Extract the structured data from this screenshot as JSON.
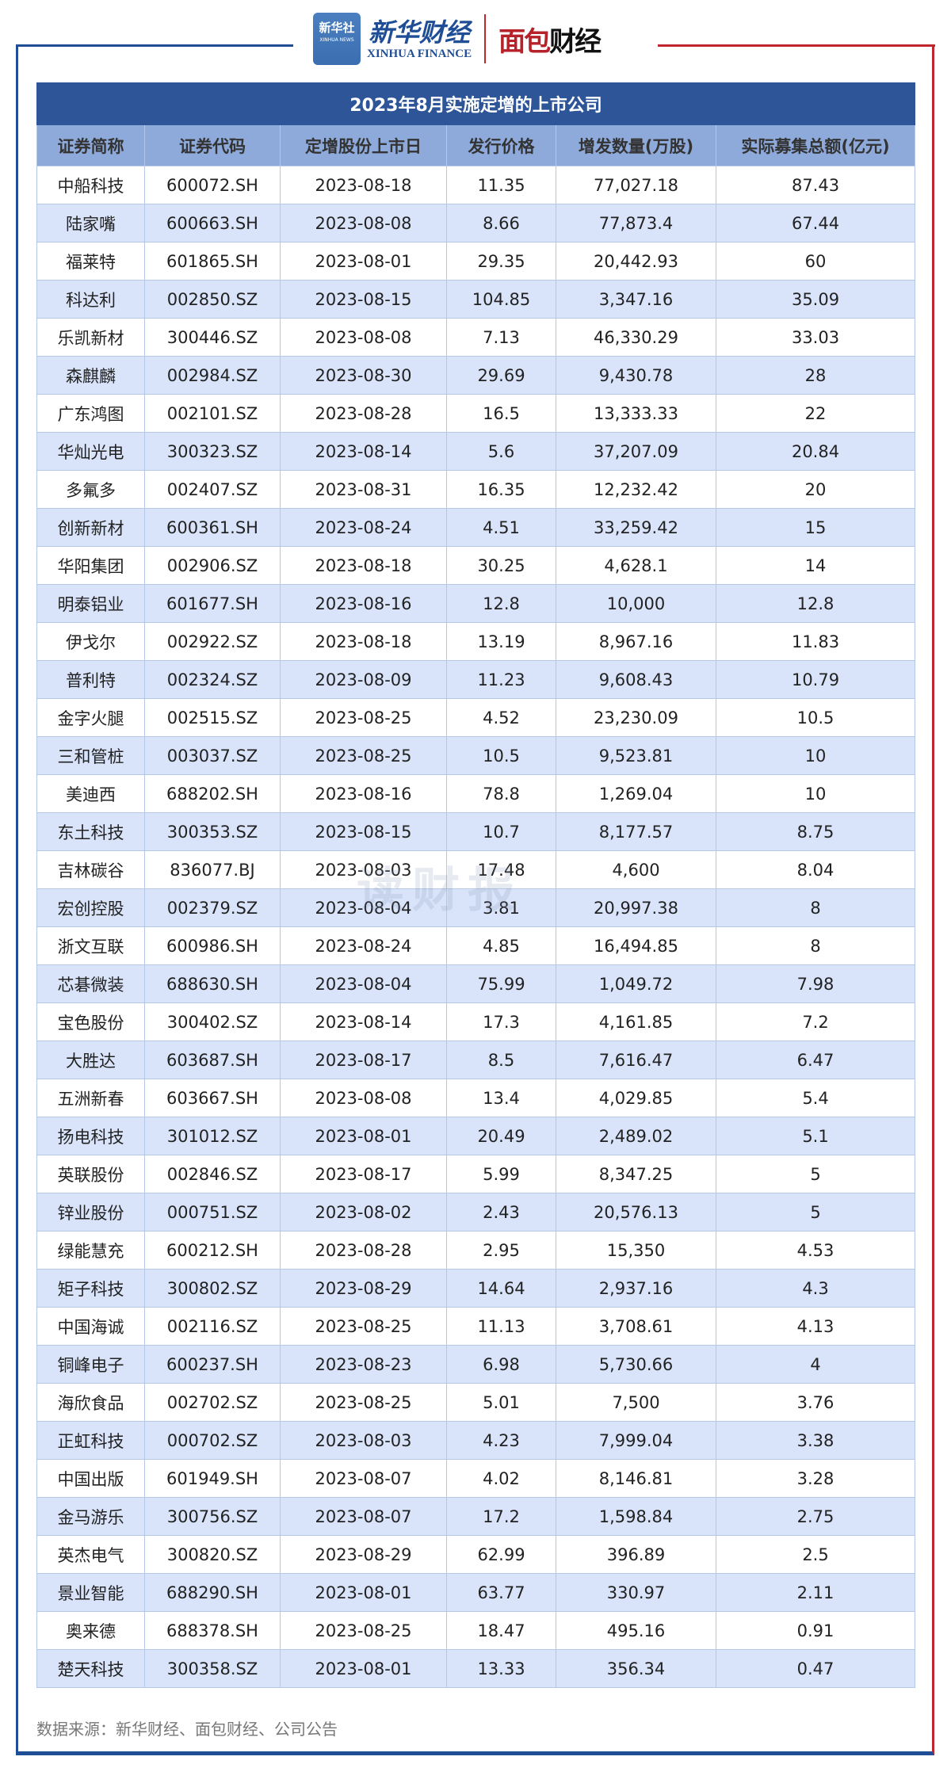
{
  "logos": {
    "xinhua_badge": "新华社",
    "xinhua_badge_en": "XINHUA NEWS",
    "xinhua_finance_cn": "新华财经",
    "xinhua_finance_en": "XINHUA FINANCE",
    "mianbao_a": "面包",
    "mianbao_b": "财经"
  },
  "colors": {
    "title_bg": "#2e5597",
    "header_bg": "#8eaadb",
    "alt_row": "#d9e4fb",
    "brand_blue": "#1f4e96",
    "brand_red": "#c0262d"
  },
  "table": {
    "title": "2023年8月实施定增的上市公司",
    "headers": [
      "证券简称",
      "证券代码",
      "定增股份上市日",
      "发行价格",
      "增发数量(万股)",
      "实际募集总额(亿元)"
    ],
    "rows": [
      [
        "中船科技",
        "600072.SH",
        "2023-08-18",
        "11.35",
        "77,027.18",
        "87.43"
      ],
      [
        "陆家嘴",
        "600663.SH",
        "2023-08-08",
        "8.66",
        "77,873.4",
        "67.44"
      ],
      [
        "福莱特",
        "601865.SH",
        "2023-08-01",
        "29.35",
        "20,442.93",
        "60"
      ],
      [
        "科达利",
        "002850.SZ",
        "2023-08-15",
        "104.85",
        "3,347.16",
        "35.09"
      ],
      [
        "乐凯新材",
        "300446.SZ",
        "2023-08-08",
        "7.13",
        "46,330.29",
        "33.03"
      ],
      [
        "森麒麟",
        "002984.SZ",
        "2023-08-30",
        "29.69",
        "9,430.78",
        "28"
      ],
      [
        "广东鸿图",
        "002101.SZ",
        "2023-08-28",
        "16.5",
        "13,333.33",
        "22"
      ],
      [
        "华灿光电",
        "300323.SZ",
        "2023-08-14",
        "5.6",
        "37,207.09",
        "20.84"
      ],
      [
        "多氟多",
        "002407.SZ",
        "2023-08-31",
        "16.35",
        "12,232.42",
        "20"
      ],
      [
        "创新新材",
        "600361.SH",
        "2023-08-24",
        "4.51",
        "33,259.42",
        "15"
      ],
      [
        "华阳集团",
        "002906.SZ",
        "2023-08-18",
        "30.25",
        "4,628.1",
        "14"
      ],
      [
        "明泰铝业",
        "601677.SH",
        "2023-08-16",
        "12.8",
        "10,000",
        "12.8"
      ],
      [
        "伊戈尔",
        "002922.SZ",
        "2023-08-18",
        "13.19",
        "8,967.16",
        "11.83"
      ],
      [
        "普利特",
        "002324.SZ",
        "2023-08-09",
        "11.23",
        "9,608.43",
        "10.79"
      ],
      [
        "金字火腿",
        "002515.SZ",
        "2023-08-25",
        "4.52",
        "23,230.09",
        "10.5"
      ],
      [
        "三和管桩",
        "003037.SZ",
        "2023-08-25",
        "10.5",
        "9,523.81",
        "10"
      ],
      [
        "美迪西",
        "688202.SH",
        "2023-08-16",
        "78.8",
        "1,269.04",
        "10"
      ],
      [
        "东土科技",
        "300353.SZ",
        "2023-08-15",
        "10.7",
        "8,177.57",
        "8.75"
      ],
      [
        "吉林碳谷",
        "836077.BJ",
        "2023-08-03",
        "17.48",
        "4,600",
        "8.04"
      ],
      [
        "宏创控股",
        "002379.SZ",
        "2023-08-04",
        "3.81",
        "20,997.38",
        "8"
      ],
      [
        "浙文互联",
        "600986.SH",
        "2023-08-24",
        "4.85",
        "16,494.85",
        "8"
      ],
      [
        "芯碁微装",
        "688630.SH",
        "2023-08-04",
        "75.99",
        "1,049.72",
        "7.98"
      ],
      [
        "宝色股份",
        "300402.SZ",
        "2023-08-14",
        "17.3",
        "4,161.85",
        "7.2"
      ],
      [
        "大胜达",
        "603687.SH",
        "2023-08-17",
        "8.5",
        "7,616.47",
        "6.47"
      ],
      [
        "五洲新春",
        "603667.SH",
        "2023-08-08",
        "13.4",
        "4,029.85",
        "5.4"
      ],
      [
        "扬电科技",
        "301012.SZ",
        "2023-08-01",
        "20.49",
        "2,489.02",
        "5.1"
      ],
      [
        "英联股份",
        "002846.SZ",
        "2023-08-17",
        "5.99",
        "8,347.25",
        "5"
      ],
      [
        "锌业股份",
        "000751.SZ",
        "2023-08-02",
        "2.43",
        "20,576.13",
        "5"
      ],
      [
        "绿能慧充",
        "600212.SH",
        "2023-08-28",
        "2.95",
        "15,350",
        "4.53"
      ],
      [
        "矩子科技",
        "300802.SZ",
        "2023-08-29",
        "14.64",
        "2,937.16",
        "4.3"
      ],
      [
        "中国海诚",
        "002116.SZ",
        "2023-08-25",
        "11.13",
        "3,708.61",
        "4.13"
      ],
      [
        "铜峰电子",
        "600237.SH",
        "2023-08-23",
        "6.98",
        "5,730.66",
        "4"
      ],
      [
        "海欣食品",
        "002702.SZ",
        "2023-08-25",
        "5.01",
        "7,500",
        "3.76"
      ],
      [
        "正虹科技",
        "000702.SZ",
        "2023-08-03",
        "4.23",
        "7,999.04",
        "3.38"
      ],
      [
        "中国出版",
        "601949.SH",
        "2023-08-07",
        "4.02",
        "8,146.81",
        "3.28"
      ],
      [
        "金马游乐",
        "300756.SZ",
        "2023-08-07",
        "17.2",
        "1,598.84",
        "2.75"
      ],
      [
        "英杰电气",
        "300820.SZ",
        "2023-08-29",
        "62.99",
        "396.89",
        "2.5"
      ],
      [
        "景业智能",
        "688290.SH",
        "2023-08-01",
        "63.77",
        "330.97",
        "2.11"
      ],
      [
        "奥来德",
        "688378.SH",
        "2023-08-25",
        "18.47",
        "495.16",
        "0.91"
      ],
      [
        "楚天科技",
        "300358.SZ",
        "2023-08-01",
        "13.33",
        "356.34",
        "0.47"
      ]
    ]
  },
  "watermark": "读财报",
  "footer": "数据来源：新华财经、面包财经、公司公告"
}
